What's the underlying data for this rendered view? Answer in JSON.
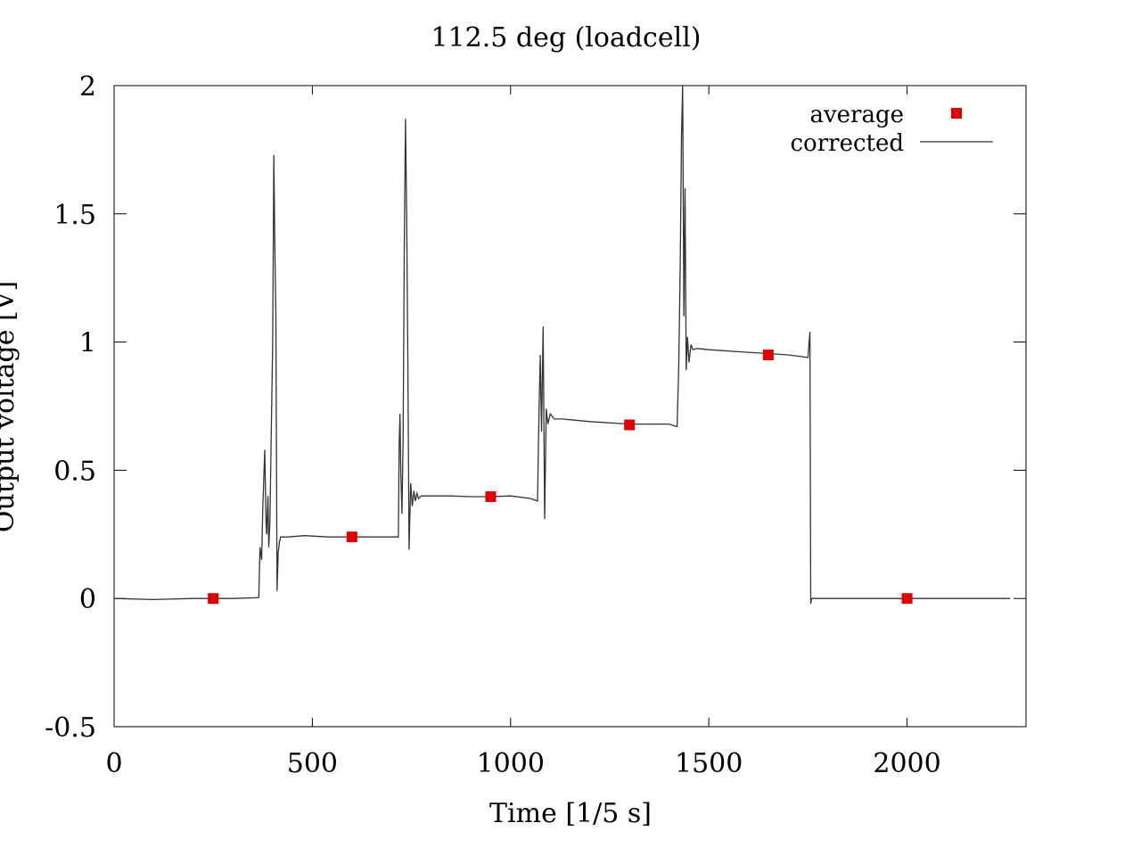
{
  "chart_data": {
    "type": "line",
    "title": "112.5 deg (loadcell)",
    "xlabel": "Time [1/5 s]",
    "ylabel": "Output voltage [V]",
    "xlim": [
      0,
      2300
    ],
    "ylim": [
      -0.5,
      2
    ],
    "xticks": [
      "0",
      "500",
      "1000",
      "1500",
      "2000"
    ],
    "xtick_values": [
      0,
      500,
      1000,
      1500,
      2000
    ],
    "yticks": [
      "-0.5",
      "0",
      "0.5",
      "1",
      "1.5",
      "2"
    ],
    "ytick_values": [
      -0.5,
      0,
      0.5,
      1,
      1.5,
      2
    ],
    "grid": false,
    "legend_position": "top-right",
    "series": [
      {
        "name": "average",
        "style": "markers",
        "color": "#e00000",
        "x": [
          250,
          600,
          950,
          1300,
          1650,
          2000
        ],
        "y": [
          0.0,
          0.24,
          0.397,
          0.677,
          0.95,
          0.0
        ]
      },
      {
        "name": "corrected",
        "style": "line",
        "color": "#333333",
        "x": [
          0,
          100,
          200,
          300,
          365,
          368,
          372,
          375,
          380,
          383,
          385,
          388,
          390,
          393,
          396,
          400,
          403,
          406,
          408,
          411,
          414,
          417,
          420,
          440,
          480,
          540,
          600,
          650,
          700,
          717,
          719,
          721,
          723,
          726,
          729,
          732,
          735,
          738,
          741,
          744,
          748,
          752,
          756,
          760,
          764,
          768,
          775,
          800,
          850,
          900,
          950,
          1000,
          1050,
          1068,
          1072,
          1075,
          1078,
          1082,
          1086,
          1090,
          1094,
          1100,
          1110,
          1130,
          1200,
          1300,
          1400,
          1420,
          1424,
          1428,
          1431,
          1434,
          1437,
          1440,
          1443,
          1446,
          1450,
          1455,
          1460,
          1470,
          1500,
          1600,
          1700,
          1750,
          1755,
          1757,
          1759,
          1765,
          1800,
          1900,
          2000,
          2100,
          2200,
          2260
        ],
        "y": [
          0.0,
          -0.004,
          0.0,
          0.0,
          0.003,
          0.2,
          0.15,
          0.35,
          0.58,
          0.3,
          0.25,
          0.4,
          0.2,
          0.3,
          0.6,
          1.0,
          1.73,
          1.3,
          1.1,
          0.03,
          0.18,
          0.22,
          0.24,
          0.24,
          0.245,
          0.24,
          0.24,
          0.24,
          0.24,
          0.24,
          0.6,
          0.72,
          0.5,
          0.33,
          0.62,
          1.4,
          1.87,
          1.5,
          0.9,
          0.19,
          0.45,
          0.36,
          0.42,
          0.38,
          0.41,
          0.39,
          0.4,
          0.4,
          0.4,
          0.397,
          0.397,
          0.4,
          0.39,
          0.38,
          0.75,
          0.95,
          0.65,
          1.06,
          0.31,
          0.74,
          0.68,
          0.72,
          0.7,
          0.7,
          0.69,
          0.68,
          0.68,
          0.67,
          0.9,
          1.3,
          1.8,
          2.0,
          1.1,
          1.6,
          0.89,
          1.02,
          0.92,
          0.99,
          0.97,
          0.975,
          0.97,
          0.96,
          0.95,
          0.94,
          1.04,
          -0.02,
          0.0,
          0.0,
          0.0,
          0.0,
          0.0,
          0.0,
          0.0,
          0.0
        ]
      }
    ]
  }
}
